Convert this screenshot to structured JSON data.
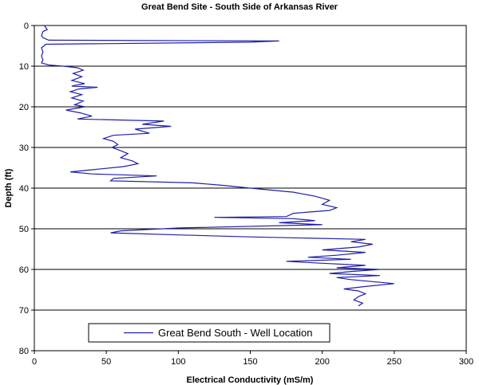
{
  "chart_data": {
    "type": "line",
    "title": "Great Bend Site - South Side of Arkansas River",
    "xlabel": "Electrical Conductivity (mS/m)",
    "ylabel": "Depth (ft)",
    "xlim": [
      0,
      300
    ],
    "ylim": [
      0,
      80
    ],
    "y_inverted": true,
    "x_ticks": [
      0,
      50,
      100,
      150,
      200,
      250,
      300
    ],
    "y_ticks": [
      0,
      10,
      20,
      30,
      40,
      50,
      60,
      70,
      80
    ],
    "horizontal_grid": true,
    "vertical_grid": false,
    "legend_position": "bottom-left",
    "series": [
      {
        "name": "Great Bend South - Well Location",
        "color": "#1f1fa8",
        "points": [
          [
            7,
            0
          ],
          [
            9,
            1
          ],
          [
            6,
            1.5
          ],
          [
            5,
            2.5
          ],
          [
            6,
            3
          ],
          [
            10,
            3.6
          ],
          [
            170,
            3.8
          ],
          [
            150,
            4.1
          ],
          [
            8,
            4.6
          ],
          [
            5,
            5.5
          ],
          [
            6,
            6.5
          ],
          [
            5,
            7.5
          ],
          [
            6,
            8.5
          ],
          [
            5,
            9.2
          ],
          [
            10,
            9.7
          ],
          [
            20,
            10
          ],
          [
            30,
            10.4
          ],
          [
            34,
            11
          ],
          [
            27,
            11.8
          ],
          [
            33,
            12.6
          ],
          [
            26,
            13.5
          ],
          [
            35,
            14.3
          ],
          [
            26,
            14.9
          ],
          [
            44,
            15.2
          ],
          [
            31,
            15.6
          ],
          [
            25,
            16.3
          ],
          [
            33,
            17
          ],
          [
            26,
            17.8
          ],
          [
            34,
            18.6
          ],
          [
            28,
            19.5
          ],
          [
            35,
            20
          ],
          [
            22,
            20.8
          ],
          [
            32,
            21.5
          ],
          [
            40,
            22.3
          ],
          [
            30,
            23
          ],
          [
            90,
            23.5
          ],
          [
            75,
            24.3
          ],
          [
            95,
            24.8
          ],
          [
            70,
            25.5
          ],
          [
            80,
            26.5
          ],
          [
            55,
            27
          ],
          [
            48,
            27.8
          ],
          [
            55,
            28.5
          ],
          [
            58,
            29.3
          ],
          [
            54,
            30
          ],
          [
            60,
            30.8
          ],
          [
            65,
            31.5
          ],
          [
            60,
            32.5
          ],
          [
            68,
            33.3
          ],
          [
            72,
            34
          ],
          [
            62,
            34.7
          ],
          [
            40,
            35.5
          ],
          [
            25,
            36
          ],
          [
            40,
            36.5
          ],
          [
            85,
            37
          ],
          [
            55,
            37.6
          ],
          [
            53,
            38.2
          ],
          [
            110,
            38.7
          ],
          [
            130,
            39.3
          ],
          [
            150,
            40
          ],
          [
            180,
            41
          ],
          [
            195,
            42
          ],
          [
            205,
            43
          ],
          [
            200,
            44
          ],
          [
            210,
            44.8
          ],
          [
            205,
            45.5
          ],
          [
            180,
            46.2
          ],
          [
            175,
            47
          ],
          [
            125,
            47.2
          ],
          [
            180,
            47.5
          ],
          [
            195,
            48
          ],
          [
            170,
            48.5
          ],
          [
            200,
            49
          ],
          [
            100,
            49.8
          ],
          [
            60,
            50.5
          ],
          [
            53,
            51
          ],
          [
            100,
            51.5
          ],
          [
            150,
            52
          ],
          [
            230,
            52.6
          ],
          [
            220,
            53.2
          ],
          [
            235,
            53.8
          ],
          [
            225,
            54.5
          ],
          [
            200,
            55.2
          ],
          [
            230,
            55.8
          ],
          [
            210,
            56.5
          ],
          [
            190,
            57
          ],
          [
            220,
            57.5
          ],
          [
            175,
            58
          ],
          [
            200,
            58.5
          ],
          [
            230,
            59
          ],
          [
            210,
            59.6
          ],
          [
            240,
            60
          ],
          [
            220,
            60.5
          ],
          [
            205,
            61
          ],
          [
            240,
            61.5
          ],
          [
            210,
            62
          ],
          [
            220,
            62.5
          ],
          [
            235,
            63
          ],
          [
            250,
            63.5
          ],
          [
            230,
            64.2
          ],
          [
            215,
            64.8
          ],
          [
            225,
            65.3
          ],
          [
            230,
            66
          ],
          [
            225,
            66.7
          ],
          [
            222,
            67.5
          ],
          [
            228,
            68.3
          ],
          [
            225,
            69
          ]
        ]
      }
    ]
  }
}
